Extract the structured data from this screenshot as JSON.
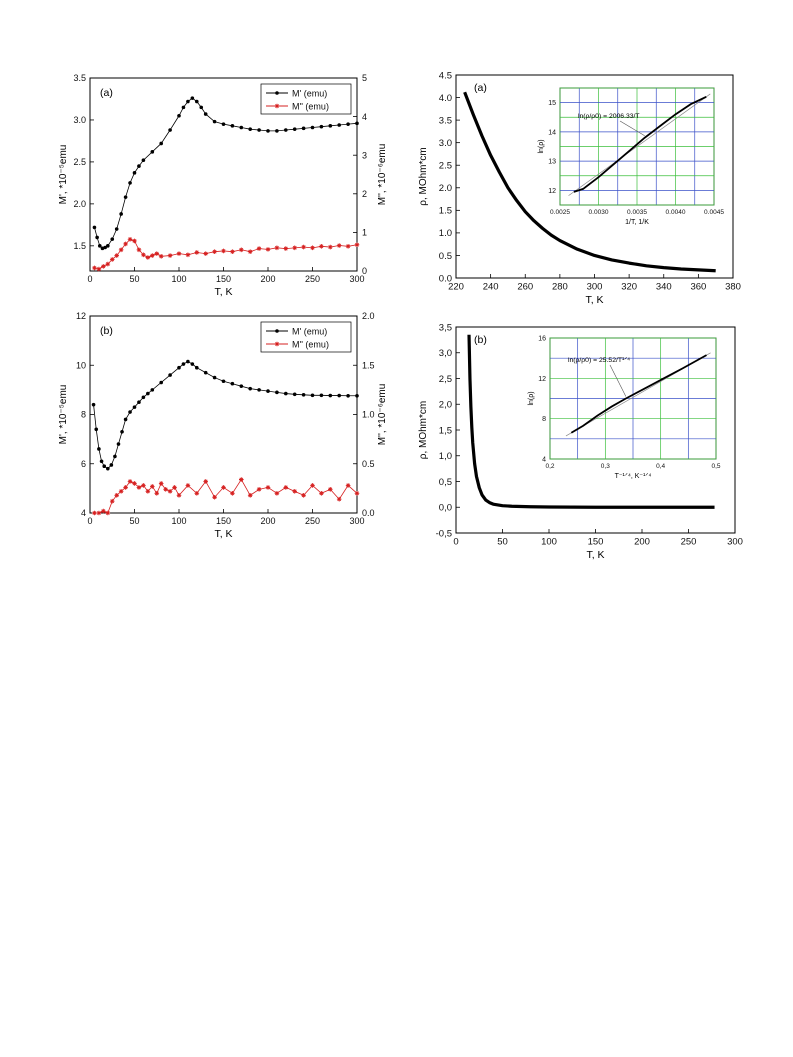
{
  "chart_data": [
    {
      "id": "mag_a",
      "type": "line",
      "panel_label": "(a)",
      "xlabel": "T, K",
      "ylabel": "M', *10⁻⁵emu",
      "y2label": "M'', *10⁻⁶emu",
      "xlim": [
        0,
        300
      ],
      "ylim": [
        1.2,
        3.5
      ],
      "y2lim": [
        0,
        5
      ],
      "xticks": [
        "0",
        "50",
        "100",
        "150",
        "200",
        "250",
        "300"
      ],
      "yticks": [
        "1.5",
        "2.0",
        "2.5",
        "3.0",
        "3.5"
      ],
      "y2ticks": [
        "0",
        "1",
        "2",
        "3",
        "4",
        "5"
      ],
      "legend_position": "top-right",
      "series": [
        {
          "name": "M' (emu)",
          "axis": "left",
          "color": "#000000",
          "marker": "circle",
          "x": [
            5,
            8,
            11,
            14,
            17,
            20,
            25,
            30,
            35,
            40,
            45,
            50,
            55,
            60,
            70,
            80,
            90,
            100,
            105,
            110,
            115,
            120,
            125,
            130,
            140,
            150,
            160,
            170,
            180,
            190,
            200,
            210,
            220,
            230,
            240,
            250,
            260,
            270,
            280,
            290,
            300
          ],
          "y": [
            1.72,
            1.6,
            1.5,
            1.47,
            1.48,
            1.5,
            1.58,
            1.7,
            1.88,
            2.08,
            2.25,
            2.37,
            2.45,
            2.52,
            2.62,
            2.72,
            2.88,
            3.05,
            3.15,
            3.22,
            3.26,
            3.22,
            3.15,
            3.07,
            2.98,
            2.95,
            2.93,
            2.91,
            2.89,
            2.88,
            2.87,
            2.87,
            2.88,
            2.89,
            2.9,
            2.91,
            2.92,
            2.93,
            2.94,
            2.95,
            2.96
          ]
        },
        {
          "name": "M'' (emu)",
          "axis": "right",
          "color": "#d62020",
          "marker": "star",
          "x": [
            5,
            10,
            15,
            20,
            25,
            30,
            35,
            40,
            45,
            50,
            55,
            60,
            65,
            70,
            75,
            80,
            90,
            100,
            110,
            120,
            130,
            140,
            150,
            160,
            170,
            180,
            190,
            200,
            210,
            220,
            230,
            240,
            250,
            260,
            270,
            280,
            290,
            300
          ],
          "y": [
            0.08,
            0.05,
            0.12,
            0.18,
            0.3,
            0.4,
            0.55,
            0.7,
            0.82,
            0.78,
            0.55,
            0.42,
            0.35,
            0.4,
            0.45,
            0.38,
            0.4,
            0.45,
            0.42,
            0.48,
            0.45,
            0.5,
            0.52,
            0.5,
            0.55,
            0.5,
            0.58,
            0.56,
            0.6,
            0.58,
            0.6,
            0.62,
            0.6,
            0.64,
            0.62,
            0.66,
            0.64,
            0.68
          ]
        }
      ]
    },
    {
      "id": "mag_b",
      "type": "line",
      "panel_label": "(b)",
      "xlabel": "T, K",
      "ylabel": "M', *10⁻⁵emu",
      "y2label": "M'', *10⁻⁶emu",
      "xlim": [
        0,
        300
      ],
      "ylim": [
        4,
        12
      ],
      "y2lim": [
        0,
        2
      ],
      "xticks": [
        "0",
        "50",
        "100",
        "150",
        "200",
        "250",
        "300"
      ],
      "yticks": [
        "4",
        "6",
        "8",
        "10",
        "12"
      ],
      "y2ticks": [
        "0.0",
        "0.5",
        "1.0",
        "1.5",
        "2.0"
      ],
      "legend_position": "top-right",
      "series": [
        {
          "name": "M' (emu)",
          "axis": "left",
          "color": "#000000",
          "marker": "circle",
          "x": [
            4,
            7,
            10,
            13,
            16,
            20,
            24,
            28,
            32,
            36,
            40,
            45,
            50,
            55,
            60,
            65,
            70,
            80,
            90,
            100,
            105,
            110,
            115,
            120,
            130,
            140,
            150,
            160,
            170,
            180,
            190,
            200,
            210,
            220,
            230,
            240,
            250,
            260,
            270,
            280,
            290,
            300
          ],
          "y": [
            8.4,
            7.4,
            6.6,
            6.1,
            5.9,
            5.8,
            5.95,
            6.3,
            6.8,
            7.3,
            7.8,
            8.1,
            8.3,
            8.5,
            8.7,
            8.85,
            9.0,
            9.3,
            9.6,
            9.9,
            10.05,
            10.15,
            10.05,
            9.9,
            9.7,
            9.5,
            9.35,
            9.25,
            9.15,
            9.05,
            9.0,
            8.95,
            8.9,
            8.85,
            8.82,
            8.8,
            8.78,
            8.78,
            8.77,
            8.77,
            8.76,
            8.76
          ]
        },
        {
          "name": "M'' (emu)",
          "axis": "right",
          "color": "#d62020",
          "marker": "star",
          "x": [
            5,
            10,
            15,
            20,
            25,
            30,
            35,
            40,
            45,
            50,
            55,
            60,
            65,
            70,
            75,
            80,
            85,
            90,
            95,
            100,
            110,
            120,
            130,
            140,
            150,
            160,
            170,
            180,
            190,
            200,
            210,
            220,
            230,
            240,
            250,
            260,
            270,
            280,
            290,
            300
          ],
          "y": [
            0.0,
            0.0,
            0.02,
            0.0,
            0.12,
            0.18,
            0.22,
            0.26,
            0.32,
            0.3,
            0.26,
            0.28,
            0.22,
            0.27,
            0.2,
            0.3,
            0.24,
            0.22,
            0.26,
            0.18,
            0.28,
            0.2,
            0.32,
            0.16,
            0.26,
            0.2,
            0.34,
            0.18,
            0.24,
            0.26,
            0.2,
            0.26,
            0.22,
            0.18,
            0.28,
            0.2,
            0.24,
            0.14,
            0.28,
            0.2
          ]
        }
      ]
    },
    {
      "id": "rho_a",
      "type": "line",
      "panel_label": "(a)",
      "xlabel": "T, K",
      "ylabel": "ρ, MOhm*cm",
      "xlim": [
        220,
        380
      ],
      "ylim": [
        0,
        4.5
      ],
      "xticks": [
        "220",
        "240",
        "260",
        "280",
        "300",
        "320",
        "340",
        "360",
        "380"
      ],
      "yticks": [
        "0.0",
        "0.5",
        "1.0",
        "1.5",
        "2.0",
        "2.5",
        "3.0",
        "3.5",
        "4.0",
        "4.5"
      ],
      "series": [
        {
          "name": "",
          "color": "#000000",
          "x": [
            225,
            230,
            235,
            240,
            245,
            250,
            255,
            260,
            265,
            270,
            275,
            280,
            290,
            300,
            310,
            320,
            330,
            340,
            350,
            360,
            370
          ],
          "y": [
            4.12,
            3.62,
            3.15,
            2.72,
            2.35,
            2.0,
            1.72,
            1.47,
            1.27,
            1.1,
            0.95,
            0.83,
            0.64,
            0.5,
            0.4,
            0.33,
            0.27,
            0.23,
            0.2,
            0.18,
            0.16
          ]
        }
      ],
      "inset": {
        "xlabel": "1/T, 1/K",
        "ylabel": "ln(ρ)",
        "annotation": "ln(ρ/ρ0) = 2006.33/T",
        "xlim": [
          0.0025,
          0.0045
        ],
        "ylim": [
          11.5,
          15.5
        ],
        "xticks": [
          "0.0025",
          "0.0030",
          "0.0035",
          "0.0040",
          "0.0045"
        ],
        "yticks": [
          "12",
          "13",
          "14",
          "15"
        ],
        "series": [
          {
            "name": "",
            "color": "#000000",
            "x": [
              0.00268,
              0.0028,
              0.003,
              0.0032,
              0.0034,
              0.0036,
              0.0038,
              0.004,
              0.0042,
              0.0044
            ],
            "y": [
              11.95,
              12.05,
              12.45,
              12.9,
              13.35,
              13.8,
              14.2,
              14.6,
              14.95,
              15.2
            ]
          }
        ]
      }
    },
    {
      "id": "rho_b",
      "type": "line",
      "panel_label": "(b)",
      "xlabel": "T, K",
      "ylabel": "ρ, MOhm*cm",
      "xlim": [
        0,
        300
      ],
      "ylim": [
        -0.5,
        3.5
      ],
      "xticks": [
        "0",
        "50",
        "100",
        "150",
        "200",
        "250",
        "300"
      ],
      "yticks": [
        "-0,5",
        "0,0",
        "0,5",
        "1,0",
        "1,5",
        "2,0",
        "2,5",
        "3,0",
        "3,5"
      ],
      "series": [
        {
          "name": "",
          "color": "#000000",
          "x": [
            14,
            15,
            16,
            17,
            18,
            20,
            22,
            25,
            28,
            32,
            36,
            40,
            50,
            60,
            80,
            100,
            150,
            200,
            250,
            278
          ],
          "y": [
            3.35,
            2.5,
            1.95,
            1.55,
            1.25,
            0.85,
            0.6,
            0.38,
            0.24,
            0.14,
            0.09,
            0.06,
            0.03,
            0.02,
            0.01,
            0.005,
            0.0,
            0.0,
            0.0,
            0.0
          ]
        }
      ],
      "inset": {
        "xlabel": "T⁻¹ᐟ⁴, K⁻¹ᐟ⁴",
        "ylabel": "ln(ρ)",
        "annotation": "ln(ρ/ρ0) = 25.52/T¹ᐟ⁴",
        "xlim": [
          0.2,
          0.55
        ],
        "ylim": [
          4,
          16
        ],
        "xticks": [
          "0,2",
          "0,3",
          "0,4",
          "0,5"
        ],
        "yticks": [
          "4",
          "8",
          "12",
          "16"
        ],
        "series": [
          {
            "name": "",
            "color": "#000000",
            "x": [
              0.245,
              0.27,
              0.3,
              0.33,
              0.36,
              0.4,
              0.44,
              0.48,
              0.53
            ],
            "y": [
              6.6,
              7.3,
              8.3,
              9.2,
              10.0,
              11.0,
              12.0,
              13.0,
              14.3
            ]
          }
        ]
      }
    }
  ]
}
